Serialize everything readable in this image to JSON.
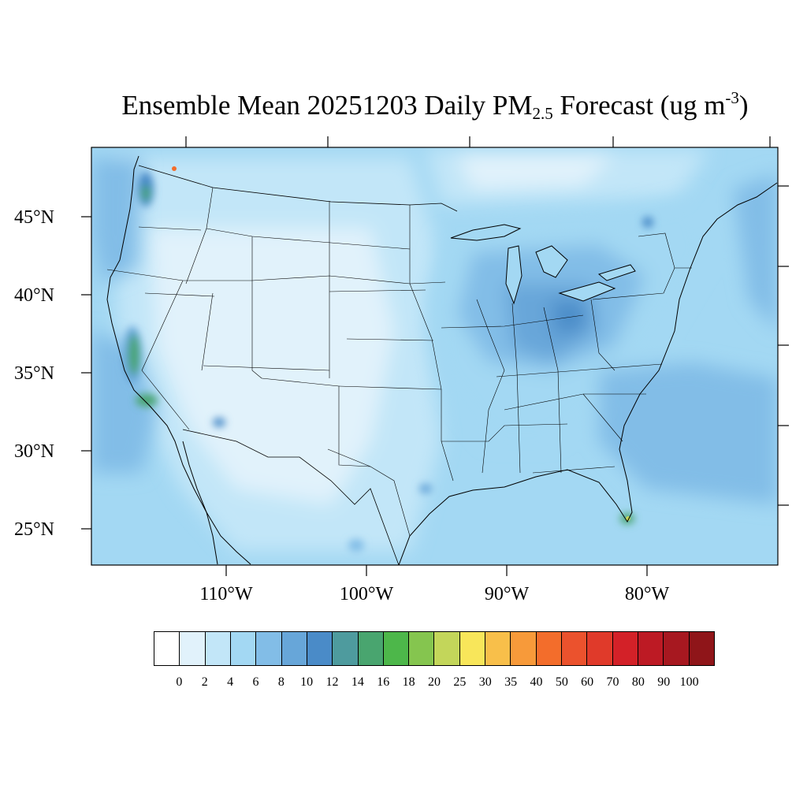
{
  "title": {
    "main": "Ensemble Mean 20251203 Daily PM",
    "sub": "2.5",
    "units_pre": " Forecast (ug m",
    "sup": "-3",
    "units_post": ")"
  },
  "map": {
    "region": "Contiguous United States",
    "lat_labels": [
      "45°N",
      "40°N",
      "35°N",
      "30°N",
      "25°N"
    ],
    "lon_labels": [
      "110°W",
      "100°W",
      "90°W",
      "80°W"
    ],
    "background_color": "#a3d8f3",
    "outline_color": "#000000"
  },
  "colorbar": {
    "colors": [
      "#ffffff",
      "#e1f2fb",
      "#c2e6f8",
      "#a3d8f3",
      "#82bde7",
      "#67a6d9",
      "#4a8bc8",
      "#4e9b9e",
      "#49a56f",
      "#4db74a",
      "#85c54f",
      "#c3d65a",
      "#f8e65a",
      "#f8bf4a",
      "#f79a3a",
      "#f36d2b",
      "#eb522d",
      "#e03a2a",
      "#d32128",
      "#bd1a24",
      "#a71820",
      "#8f1519"
    ],
    "labels": [
      "0",
      "2",
      "4",
      "6",
      "8",
      "10",
      "12",
      "14",
      "16",
      "18",
      "20",
      "25",
      "30",
      "35",
      "40",
      "50",
      "60",
      "70",
      "80",
      "90",
      "100"
    ]
  }
}
